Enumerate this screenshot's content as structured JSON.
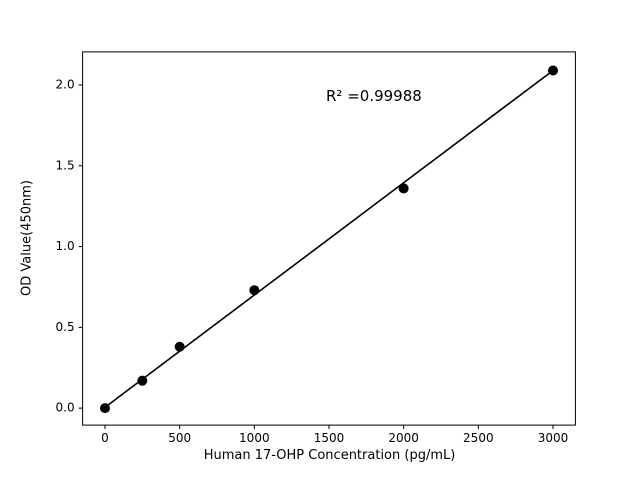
{
  "chart_data": {
    "type": "scatter",
    "title": "",
    "xlabel": "Human 17-OHP Concentration (pg/mL)",
    "ylabel": "OD Value(450nm)",
    "x": [
      0,
      250,
      500,
      1000,
      2000,
      3000
    ],
    "y": [
      0.0,
      0.17,
      0.38,
      0.73,
      1.36,
      2.09
    ],
    "fit_line": {
      "x": [
        0,
        3000
      ],
      "y": [
        0.005,
        2.09
      ]
    },
    "annotation": "R² =0.99988",
    "annotation_pos": {
      "x": 1480,
      "y": 1.93
    },
    "xlim": [
      -150,
      3150
    ],
    "ylim": [
      -0.105,
      2.205
    ],
    "xticks": [
      0,
      500,
      1000,
      1500,
      2000,
      2500,
      3000
    ],
    "yticks": [
      0.0,
      0.5,
      1.0,
      1.5,
      2.0
    ],
    "grid": false,
    "legend": "none",
    "marker_color": "#000000",
    "line_color": "#000000",
    "frame_color": "#000000",
    "background_color": "#ffffff"
  }
}
